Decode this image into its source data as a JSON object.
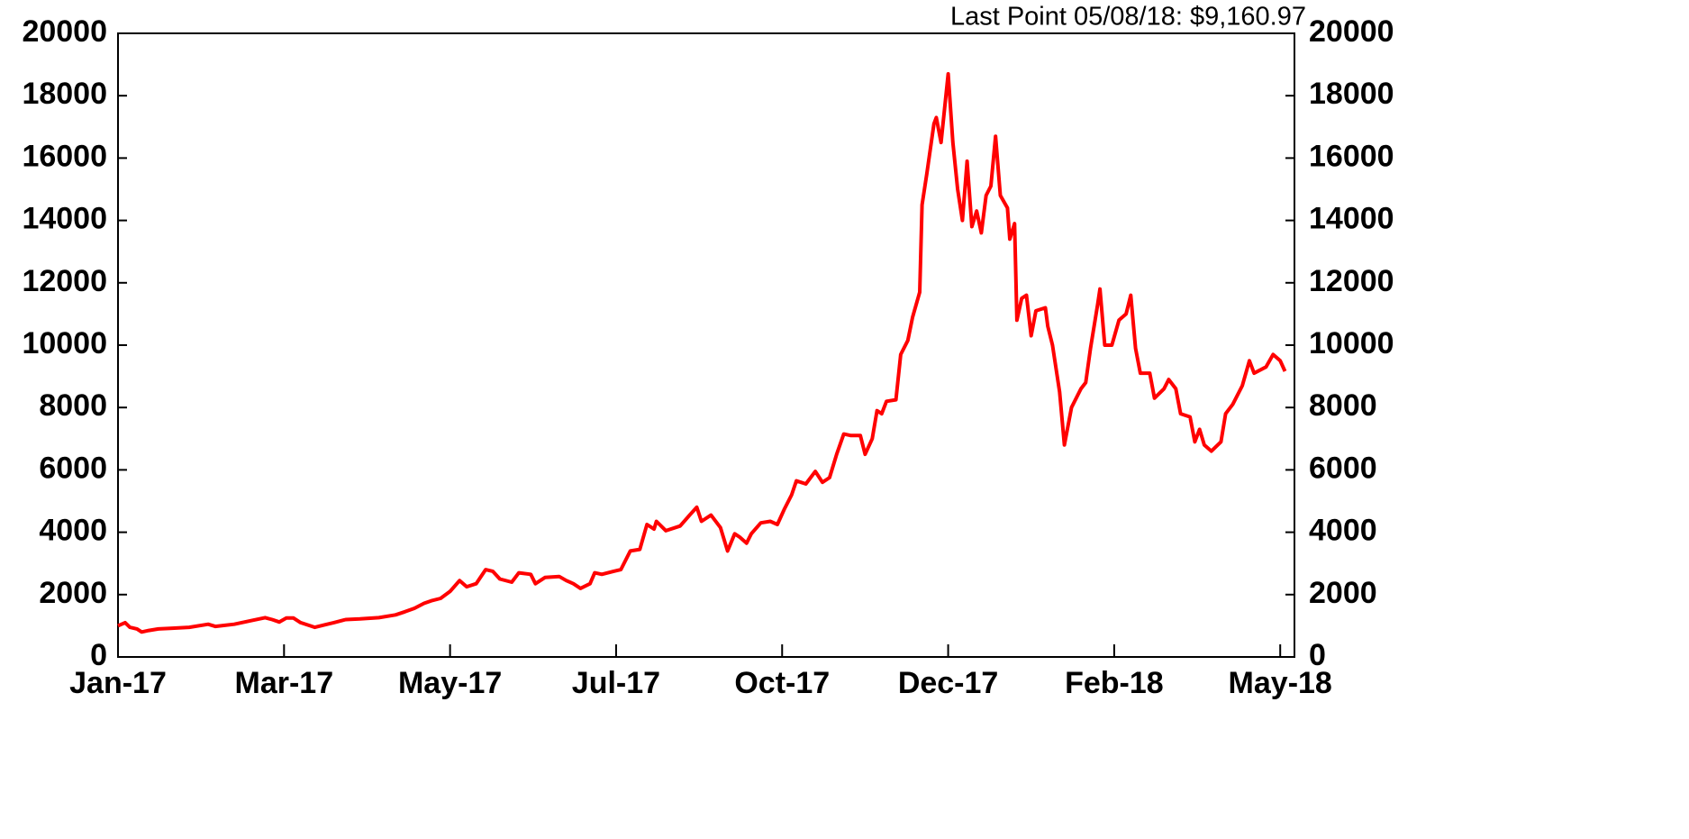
{
  "chart_data": {
    "type": "line",
    "annotation": "Last Point 05/08/18: $9,160.97",
    "color": "#ff0000",
    "x": [
      0,
      3,
      5,
      8,
      10,
      13,
      17,
      22,
      30,
      38,
      41,
      49,
      57,
      62,
      65,
      68,
      71,
      74,
      77,
      81,
      83,
      87,
      91,
      96,
      102,
      110,
      117,
      121,
      125,
      129,
      132,
      136,
      140,
      144,
      147,
      151,
      155,
      158,
      161,
      166,
      169,
      174,
      176,
      180,
      186,
      189,
      192,
      195,
      199,
      201,
      204,
      209,
      212,
      216,
      220,
      223,
      226,
      227,
      231,
      237,
      241,
      244,
      246,
      250,
      254,
      257,
      260,
      262,
      265,
      267,
      271,
      275,
      278,
      281,
      284,
      286,
      290,
      294,
      297,
      300,
      303,
      306,
      309,
      313,
      315,
      318,
      320,
      322,
      324,
      328,
      330,
      333,
      335,
      338,
      339,
      341,
      344,
      345,
      347,
      350,
      352,
      354,
      356,
      358,
      360,
      362,
      364,
      366,
      368,
      370,
      372,
      375,
      376,
      378,
      379,
      381,
      383,
      385,
      387,
      391,
      392,
      394,
      397,
      399,
      402,
      406,
      408,
      410,
      413,
      414,
      416,
      419,
      422,
      425,
      427,
      429,
      431,
      435,
      437,
      441,
      443,
      446,
      448,
      452,
      454,
      456,
      458,
      461,
      465,
      467,
      470,
      474,
      477,
      479,
      484,
      487,
      490,
      492
    ],
    "values": [
      1000,
      1100,
      950,
      900,
      800,
      850,
      900,
      920,
      950,
      1050,
      980,
      1050,
      1180,
      1260,
      1200,
      1120,
      1250,
      1250,
      1100,
      1000,
      950,
      1030,
      1100,
      1200,
      1220,
      1260,
      1350,
      1450,
      1560,
      1720,
      1800,
      1880,
      2100,
      2450,
      2250,
      2350,
      2800,
      2750,
      2500,
      2400,
      2700,
      2650,
      2350,
      2550,
      2580,
      2450,
      2350,
      2200,
      2350,
      2700,
      2650,
      2750,
      2800,
      3400,
      3450,
      4250,
      4100,
      4350,
      4050,
      4200,
      4550,
      4800,
      4350,
      4550,
      4150,
      3400,
      3950,
      3850,
      3650,
      3950,
      4300,
      4350,
      4250,
      4750,
      5200,
      5650,
      5550,
      5950,
      5600,
      5750,
      6500,
      7150,
      7100,
      7100,
      6500,
      7000,
      7900,
      7800,
      8200,
      8250,
      9700,
      10150,
      10900,
      11700,
      14500,
      15500,
      17100,
      17300,
      16500,
      18700,
      16500,
      15000,
      14000,
      15900,
      13800,
      14300,
      13600,
      14800,
      15100,
      16700,
      14800,
      14400,
      13400,
      13900,
      10800,
      11500,
      11600,
      10300,
      11100,
      11200,
      10600,
      10000,
      8500,
      6800,
      8000,
      8600,
      8800,
      9900,
      11300,
      11800,
      10000,
      10000,
      10800,
      11000,
      11600,
      9900,
      9100,
      9100,
      8300,
      8600,
      8900,
      8600,
      7800,
      7700,
      6900,
      7300,
      6800,
      6600,
      6900,
      7800,
      8100,
      8700,
      9500,
      9100,
      9300,
      9700,
      9500,
      9160.97
    ],
    "xlim": [
      0,
      496
    ],
    "xticks": [
      {
        "value": 0,
        "label": "Jan-17"
      },
      {
        "value": 70,
        "label": "Mar-17"
      },
      {
        "value": 140,
        "label": "May-17"
      },
      {
        "value": 210,
        "label": "Jul-17"
      },
      {
        "value": 280,
        "label": "Oct-17"
      },
      {
        "value": 350,
        "label": "Dec-17"
      },
      {
        "value": 420,
        "label": "Feb-18"
      },
      {
        "value": 490,
        "label": "May-18"
      }
    ],
    "ylim": [
      0,
      20000
    ],
    "yticks": [
      0,
      2000,
      4000,
      6000,
      8000,
      10000,
      12000,
      14000,
      16000,
      18000,
      20000
    ],
    "y2lim": [
      0,
      20000
    ],
    "y2ticks": [
      0,
      2000,
      4000,
      6000,
      8000,
      10000,
      12000,
      14000,
      16000,
      18000,
      20000
    ]
  }
}
